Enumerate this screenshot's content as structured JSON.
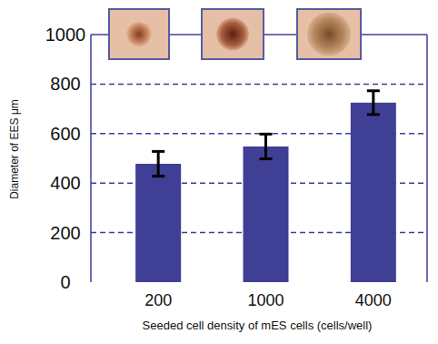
{
  "chart_data": {
    "type": "bar",
    "y_label": "Diameter of EES μm",
    "x_label": "Seeded cell density of mES cells (cells/well)",
    "categories": [
      "200",
      "1000",
      "4000"
    ],
    "values": [
      478,
      548,
      725
    ],
    "errors": [
      50,
      50,
      48
    ],
    "color": "#3f3f96",
    "ylim": [
      0,
      1000
    ],
    "yticks": [
      0,
      200,
      400,
      600,
      800,
      1000
    ],
    "grid": true
  }
}
